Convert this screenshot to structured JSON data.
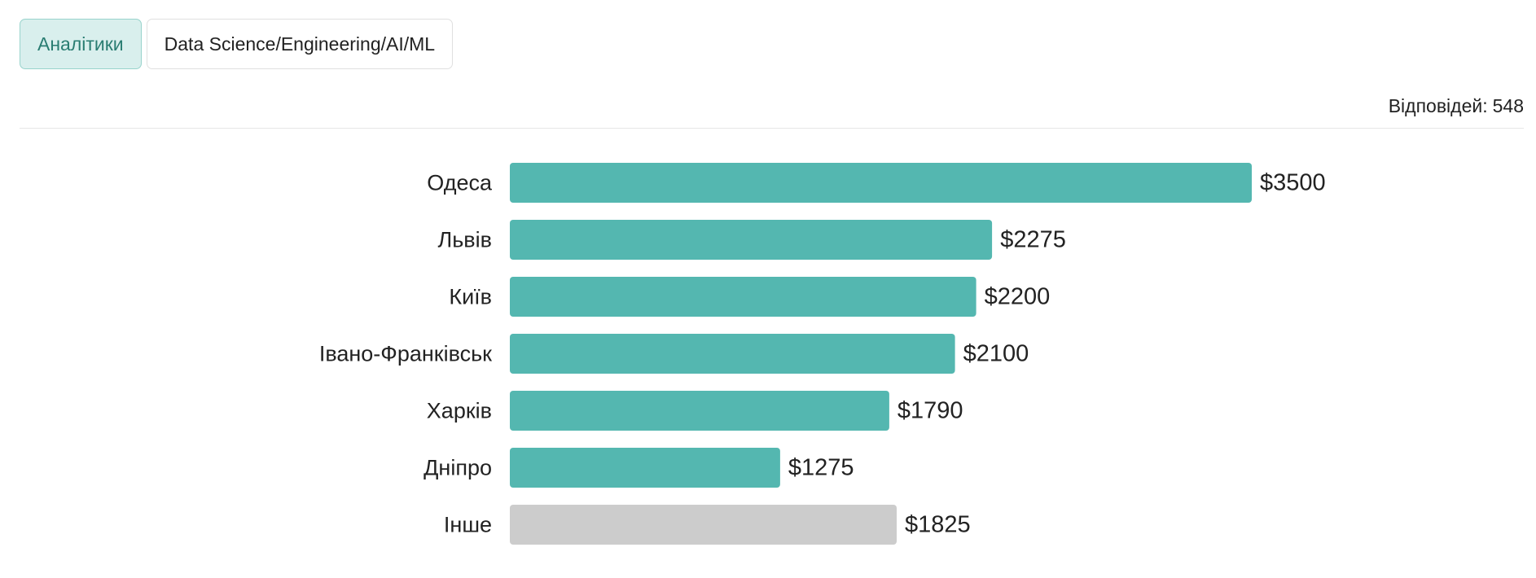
{
  "tabs": [
    {
      "label": "Аналітики",
      "active": true
    },
    {
      "label": "Data Science/Engineering/AI/ML",
      "active": false
    }
  ],
  "responses": {
    "label": "Відповідей:",
    "count": "548"
  },
  "colors": {
    "bar": "#54b7b0",
    "bar_other": "#cccccc",
    "accent": "#2a7d72"
  },
  "chart_data": {
    "type": "bar",
    "orientation": "horizontal",
    "value_prefix": "$",
    "xlim": [
      0,
      3500
    ],
    "grid": false,
    "legend": "none",
    "categories": [
      "Одеса",
      "Львів",
      "Київ",
      "Івано-Франківськ",
      "Харків",
      "Дніпро",
      "Інше"
    ],
    "values": [
      3500,
      2275,
      2200,
      2100,
      1790,
      1275,
      1825
    ],
    "highlight": [
      true,
      true,
      true,
      true,
      true,
      true,
      false
    ]
  }
}
